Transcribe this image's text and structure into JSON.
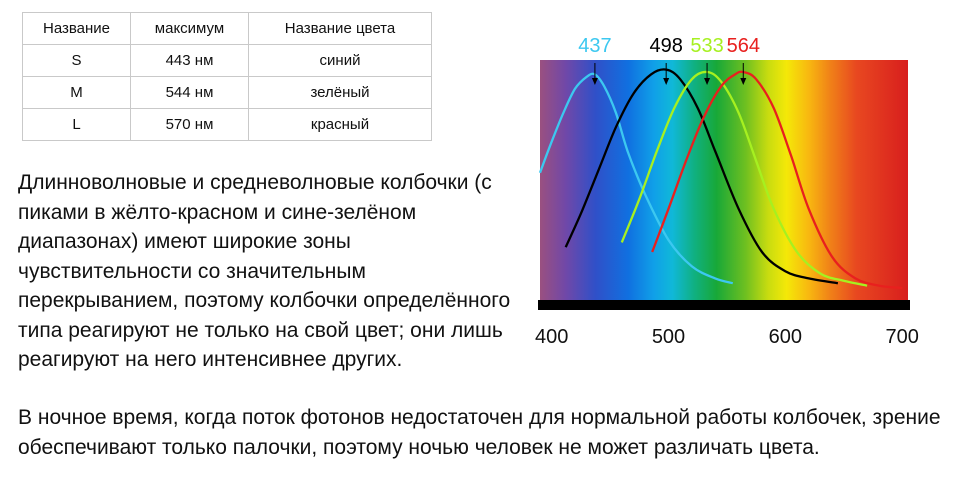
{
  "table": {
    "headers": [
      "Название",
      "максимум",
      "Название цвета"
    ],
    "rows": [
      [
        "S",
        "443 нм",
        "синий"
      ],
      [
        "M",
        "544 нм",
        "зелёный"
      ],
      [
        "L",
        "570 нм",
        "красный"
      ]
    ]
  },
  "text": {
    "para1": "Длинноволновые и средневолновые колбочки (с пиками в жёлто-красном и сине-зелёном диапазонах) имеют широкие зоны чувствительности со значительным перекрыванием, поэтому колбочки определённого типа реагируют не только на свой цвет; они лишь реагируют на него интенсивнее других.",
    "para2": "В ночное время, когда поток фотонов недостаточен для нормальной работы колбочек, зрение обеспечивают только палочки, поэтому ночью человек не может различать цвета."
  },
  "chart_data": {
    "type": "line",
    "title": "",
    "xlabel": "",
    "ylabel": "",
    "xlim": [
      390,
      705
    ],
    "ylim": [
      0,
      1
    ],
    "xticks": [
      "400",
      "500",
      "600",
      "700"
    ],
    "background": "visible spectrum gradient (violet to red)",
    "grid": false,
    "legend": "none",
    "series": [
      {
        "peak_label": "437",
        "color": "#3cc8f0",
        "x": [
          390,
          400,
          410,
          420,
          430,
          437,
          445,
          455,
          465,
          480,
          500,
          520,
          540,
          555
        ],
        "y": [
          0.53,
          0.66,
          0.78,
          0.88,
          0.93,
          0.94,
          0.89,
          0.78,
          0.62,
          0.44,
          0.25,
          0.14,
          0.09,
          0.07
        ]
      },
      {
        "peak_label": "498",
        "color": "#000000",
        "x": [
          412,
          425,
          440,
          455,
          470,
          485,
          498,
          510,
          525,
          540,
          560,
          580,
          600,
          620,
          645
        ],
        "y": [
          0.22,
          0.36,
          0.54,
          0.72,
          0.86,
          0.94,
          0.96,
          0.92,
          0.8,
          0.62,
          0.38,
          0.2,
          0.12,
          0.09,
          0.07
        ]
      },
      {
        "peak_label": "533",
        "color": "#a6f020",
        "x": [
          460,
          475,
          490,
          505,
          520,
          533,
          545,
          560,
          575,
          590,
          610,
          630,
          650,
          670
        ],
        "y": [
          0.24,
          0.42,
          0.62,
          0.8,
          0.92,
          0.95,
          0.91,
          0.78,
          0.58,
          0.38,
          0.2,
          0.11,
          0.08,
          0.06
        ]
      },
      {
        "peak_label": "564",
        "color": "#e8201e",
        "x": [
          486,
          500,
          515,
          530,
          545,
          557,
          564,
          575,
          590,
          605,
          620,
          640,
          660,
          680,
          700
        ],
        "y": [
          0.2,
          0.38,
          0.58,
          0.76,
          0.89,
          0.94,
          0.95,
          0.92,
          0.8,
          0.6,
          0.38,
          0.18,
          0.09,
          0.06,
          0.05
        ]
      }
    ]
  }
}
